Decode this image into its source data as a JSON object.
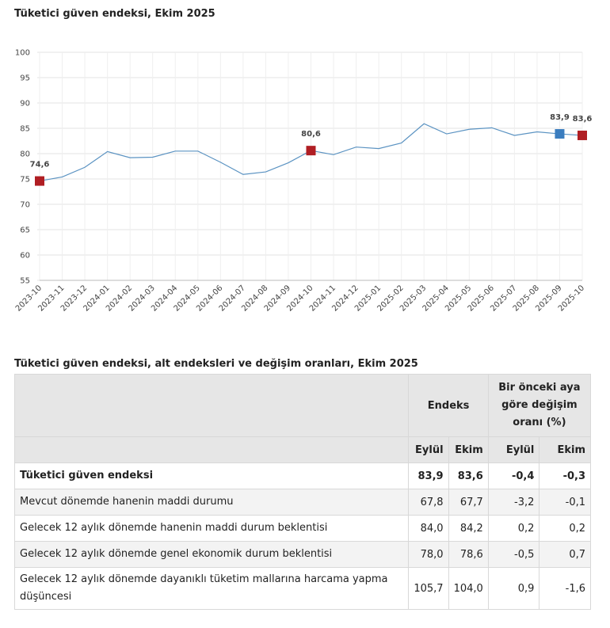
{
  "chart_data": {
    "type": "line",
    "title": "Tüketici güven endeksi, Ekim 2025",
    "categories": [
      "2023-10",
      "2023-11",
      "2023-12",
      "2024-01",
      "2024-02",
      "2024-03",
      "2024-04",
      "2024-05",
      "2024-06",
      "2024-07",
      "2024-08",
      "2024-09",
      "2024-10",
      "2024-11",
      "2024-12",
      "2025-01",
      "2025-02",
      "2025-03",
      "2025-04",
      "2025-05",
      "2025-06",
      "2025-07",
      "2025-08",
      "2025-09",
      "2025-10"
    ],
    "values": [
      74.6,
      75.4,
      77.3,
      80.4,
      79.2,
      79.3,
      80.5,
      80.5,
      78.3,
      75.9,
      76.4,
      78.2,
      80.6,
      79.8,
      81.3,
      81.0,
      82.1,
      85.9,
      83.9,
      84.8,
      85.1,
      83.6,
      84.3,
      83.9,
      83.6
    ],
    "value_labels": [
      "74,6",
      null,
      null,
      null,
      null,
      null,
      null,
      null,
      null,
      null,
      null,
      null,
      "80,6",
      null,
      null,
      null,
      null,
      null,
      null,
      null,
      null,
      null,
      null,
      "83,9",
      "83,6"
    ],
    "marker_colors": [
      "#b01e23",
      null,
      null,
      null,
      null,
      null,
      null,
      null,
      null,
      null,
      null,
      null,
      "#b01e23",
      null,
      null,
      null,
      null,
      null,
      null,
      null,
      null,
      null,
      null,
      "#3a7dbf",
      "#b01e23"
    ],
    "color": "#5b93c2",
    "ylim": [
      55,
      100
    ],
    "yticks": [
      55,
      60,
      65,
      70,
      75,
      80,
      85,
      90,
      95,
      100
    ],
    "grid": true
  },
  "table": {
    "title": "Tüketici güven endeksi, alt endeksleri ve değişim oranları, Ekim 2025",
    "header": {
      "index": "Endeks",
      "change": "Bir önceki aya göre değişim oranı (%)",
      "sub": [
        "Eylül",
        "Ekim",
        "Eylül",
        "Ekim"
      ]
    },
    "rows": [
      [
        "Tüketici güven endeksi",
        "83,9",
        "83,6",
        "-0,4",
        "-0,3"
      ],
      [
        "Mevcut dönemde hanenin maddi durumu",
        "67,8",
        "67,7",
        "-3,2",
        "-0,1"
      ],
      [
        "Gelecek 12 aylık dönemde hanenin maddi durum beklentisi",
        "84,0",
        "84,2",
        "0,2",
        "0,2"
      ],
      [
        "Gelecek 12 aylık dönemde genel ekonomik durum beklentisi",
        "78,0",
        "78,6",
        "-0,5",
        "0,7"
      ],
      [
        "Gelecek 12 aylık dönemde dayanıklı tüketim mallarına harcama yapma düşüncesi",
        "105,7",
        "104,0",
        "0,9",
        "-1,6"
      ]
    ]
  }
}
